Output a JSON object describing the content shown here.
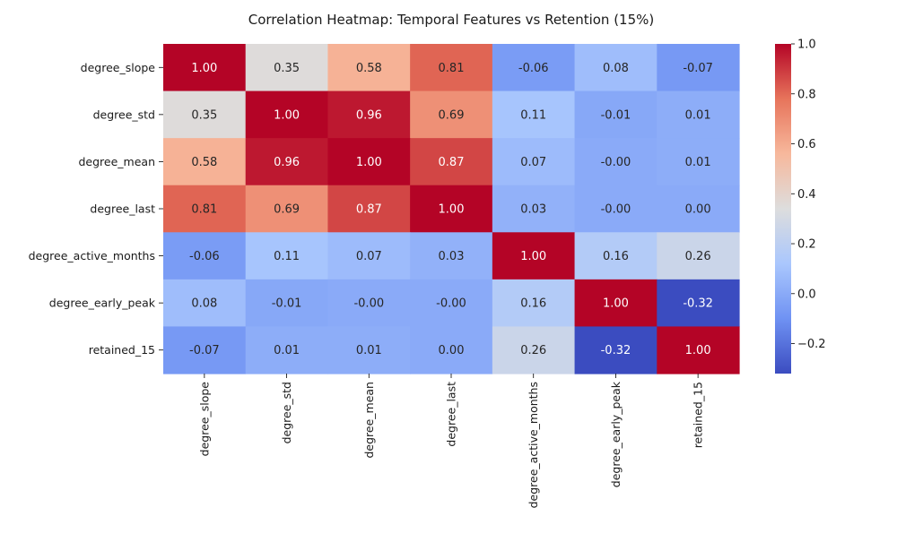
{
  "chart_data": {
    "type": "heatmap",
    "title": "Correlation Heatmap: Temporal Features vs Retention (15%)",
    "row_labels": [
      "degree_slope",
      "degree_std",
      "degree_mean",
      "degree_last",
      "degree_active_months",
      "degree_early_peak",
      "retained_15"
    ],
    "col_labels": [
      "degree_slope",
      "degree_std",
      "degree_mean",
      "degree_last",
      "degree_active_months",
      "degree_early_peak",
      "retained_15"
    ],
    "values": [
      [
        1.0,
        0.35,
        0.58,
        0.81,
        -0.06,
        0.08,
        -0.07
      ],
      [
        0.35,
        1.0,
        0.96,
        0.69,
        0.11,
        -0.01,
        0.01
      ],
      [
        0.58,
        0.96,
        1.0,
        0.87,
        0.07,
        -0.0,
        0.01
      ],
      [
        0.81,
        0.69,
        0.87,
        1.0,
        0.03,
        -0.0,
        0.0
      ],
      [
        -0.06,
        0.11,
        0.07,
        0.03,
        1.0,
        0.16,
        0.26
      ],
      [
        0.08,
        -0.01,
        -0.0,
        -0.0,
        0.16,
        1.0,
        -0.32
      ],
      [
        -0.07,
        0.01,
        0.01,
        0.0,
        0.26,
        -0.32,
        1.0
      ]
    ],
    "cell_labels": [
      [
        "1.00",
        "0.35",
        "0.58",
        "0.81",
        "-0.06",
        "0.08",
        "-0.07"
      ],
      [
        "0.35",
        "1.00",
        "0.96",
        "0.69",
        "0.11",
        "-0.01",
        "0.01"
      ],
      [
        "0.58",
        "0.96",
        "1.00",
        "0.87",
        "0.07",
        "-0.00",
        "0.01"
      ],
      [
        "0.81",
        "0.69",
        "0.87",
        "1.00",
        "0.03",
        "-0.00",
        "0.00"
      ],
      [
        "-0.06",
        "0.11",
        "0.07",
        "0.03",
        "1.00",
        "0.16",
        "0.26"
      ],
      [
        "0.08",
        "-0.01",
        "-0.00",
        "-0.00",
        "0.16",
        "1.00",
        "-0.32"
      ],
      [
        "-0.07",
        "0.01",
        "0.01",
        "0.00",
        "0.26",
        "-0.32",
        "1.00"
      ]
    ],
    "colormap": "coolwarm",
    "colormap_stops": [
      "#3b4cc0",
      "#6f92f3",
      "#aac7fd",
      "#dddddd",
      "#f7b89c",
      "#e7745b",
      "#b40426"
    ],
    "color_range": [
      -0.32,
      1.0
    ],
    "colorbar": {
      "ticks": [
        -0.2,
        0.0,
        0.2,
        0.4,
        0.6,
        0.8,
        1.0
      ],
      "tick_labels": [
        "−0.2",
        "0.0",
        "0.2",
        "0.4",
        "0.6",
        "0.8",
        "1.0"
      ]
    }
  }
}
